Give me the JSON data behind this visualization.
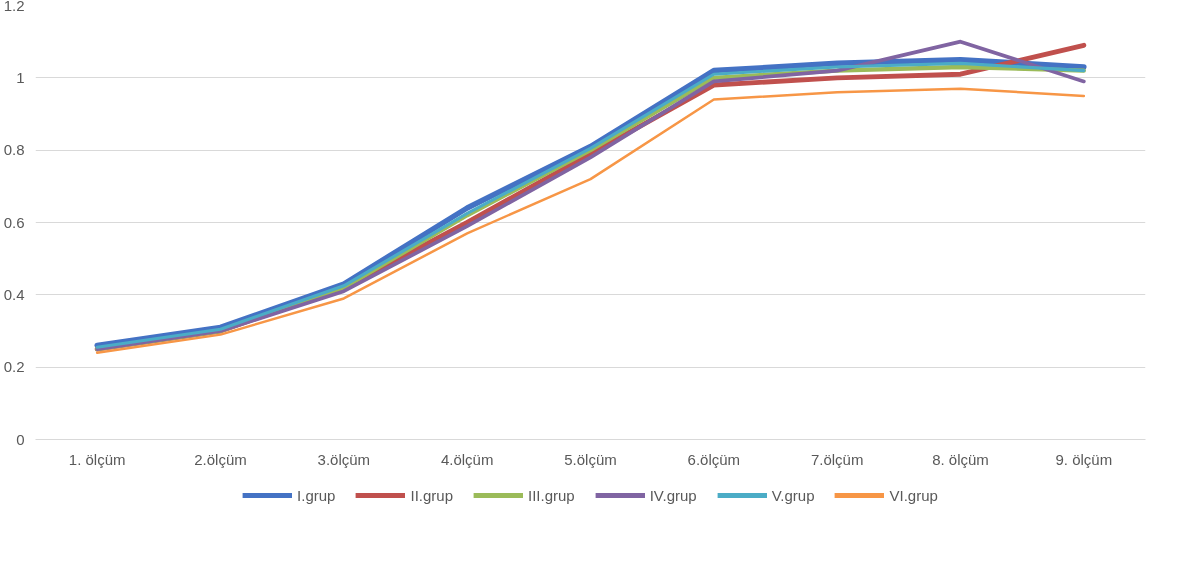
{
  "chart_data": {
    "type": "line",
    "categories": [
      "1. ölçüm",
      "2.ölçüm",
      "3.ölçüm",
      "4.ölçüm",
      "5.ölçüm",
      "6.ölçüm",
      "7.ölçüm",
      "8. ölçüm",
      "9. ölçüm"
    ],
    "ylim": [
      0,
      1.2
    ],
    "yticks": [
      0,
      0.2,
      0.4,
      0.6,
      0.8,
      1,
      1.2
    ],
    "grid": "y",
    "legend": "bottom",
    "marker": "none",
    "line_style": "solid",
    "series": [
      {
        "name": "I.grup",
        "color": "#4472c4",
        "values": [
          0.26,
          0.31,
          0.43,
          0.64,
          0.81,
          1.02,
          1.04,
          1.05,
          1.03
        ]
      },
      {
        "name": "II.grup",
        "color": "#c0504d",
        "values": [
          0.25,
          0.3,
          0.42,
          0.6,
          0.79,
          0.98,
          1.0,
          1.01,
          1.09
        ]
      },
      {
        "name": "III.grup",
        "color": "#9bbb59",
        "values": [
          0.25,
          0.3,
          0.42,
          0.62,
          0.8,
          1.0,
          1.02,
          1.03,
          1.02
        ]
      },
      {
        "name": "IV.grup",
        "color": "#8064a2",
        "values": [
          0.25,
          0.3,
          0.41,
          0.59,
          0.78,
          0.99,
          1.02,
          1.1,
          0.99
        ]
      },
      {
        "name": "V.grup",
        "color": "#4bacc6",
        "values": [
          0.255,
          0.305,
          0.425,
          0.625,
          0.805,
          1.01,
          1.03,
          1.04,
          1.02
        ]
      },
      {
        "name": "VI.grup",
        "color": "#f79646",
        "values": [
          0.24,
          0.29,
          0.39,
          0.57,
          0.72,
          0.94,
          0.96,
          0.97,
          0.95
        ]
      }
    ]
  }
}
